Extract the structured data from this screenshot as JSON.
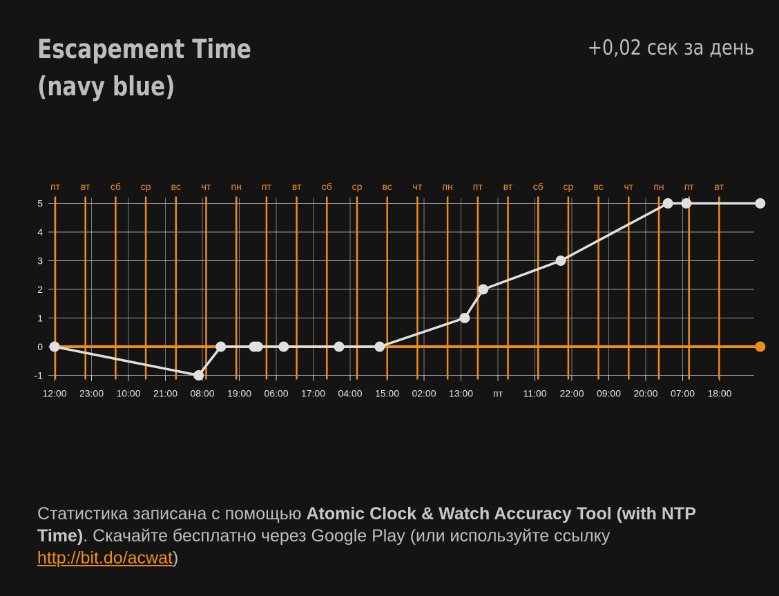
{
  "header": {
    "title": "Escapement Time (navy blue)",
    "rate": "+0,02 сек за день"
  },
  "footer": {
    "text_before": "Статистика записана с помощью ",
    "app_name": "Atomic Clock & Watch Accuracy Tool (with NTP Time)",
    "text_after": ". Скачайте бесплатно через Google Play (или используйте ссылку ",
    "link": "http://bit.do/acwat",
    "text_end": ")"
  },
  "colors": {
    "background": "#141414",
    "accent": "#f08c1a",
    "line": "#e0e0e0",
    "text": "#bdbdbd",
    "grid": "#cfcfcf"
  },
  "chart_data": {
    "type": "line",
    "title": "",
    "xlabel": "",
    "ylabel": "",
    "ylim": [
      -1,
      5
    ],
    "yticks": [
      -1,
      0,
      1,
      2,
      3,
      4,
      5
    ],
    "x_tick_labels": [
      "12:00",
      "23:00",
      "10:00",
      "21:00",
      "08:00",
      "19:00",
      "06:00",
      "17:00",
      "04:00",
      "15:00",
      "02:00",
      "13:00",
      "пт",
      "11:00",
      "22:00",
      "09:00",
      "20:00",
      "07:00",
      "18:00"
    ],
    "day_labels": [
      "пт",
      "вт",
      "сб",
      "ср",
      "вс",
      "чт",
      "пн",
      "пт",
      "вт",
      "сб",
      "ср",
      "вс",
      "чт",
      "пн",
      "пт",
      "вт",
      "сб",
      "ср",
      "вс",
      "чт",
      "пн",
      "пт",
      "вт"
    ],
    "grid": true,
    "legend": "none",
    "series": [
      {
        "values": [
          0,
          -1,
          0,
          0,
          0,
          0,
          0,
          0,
          1,
          2,
          3,
          5,
          5,
          5
        ],
        "x_index": [
          0,
          3.9,
          4.5,
          5.4,
          5.5,
          6.2,
          7.7,
          8.8,
          11.1,
          11.6,
          13.7,
          16.6,
          17.1,
          19.1
        ]
      }
    ],
    "baseline": 0,
    "baseline_points": [
      0,
      19.1
    ]
  }
}
